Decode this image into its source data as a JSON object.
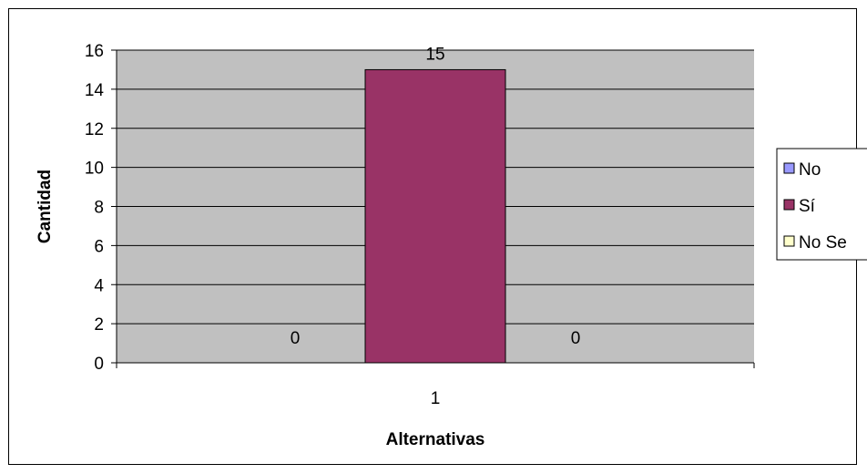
{
  "chart_data": {
    "type": "bar",
    "categories": [
      "1"
    ],
    "series": [
      {
        "name": "No",
        "values": [
          0
        ],
        "color": "#9999ff"
      },
      {
        "name": "Sí",
        "values": [
          15
        ],
        "color": "#993366"
      },
      {
        "name": "No Se",
        "values": [
          0
        ],
        "color": "#ffffcc"
      }
    ],
    "data_labels": [
      "0",
      "15",
      "0"
    ],
    "xlabel": "Alternativas",
    "ylabel": "Cantidad",
    "ylim": [
      0,
      16
    ],
    "yticks": [
      0,
      2,
      4,
      6,
      8,
      10,
      12,
      14,
      16
    ],
    "plot_background": "#c0c0c0",
    "grid": true,
    "legend_position": "right"
  }
}
